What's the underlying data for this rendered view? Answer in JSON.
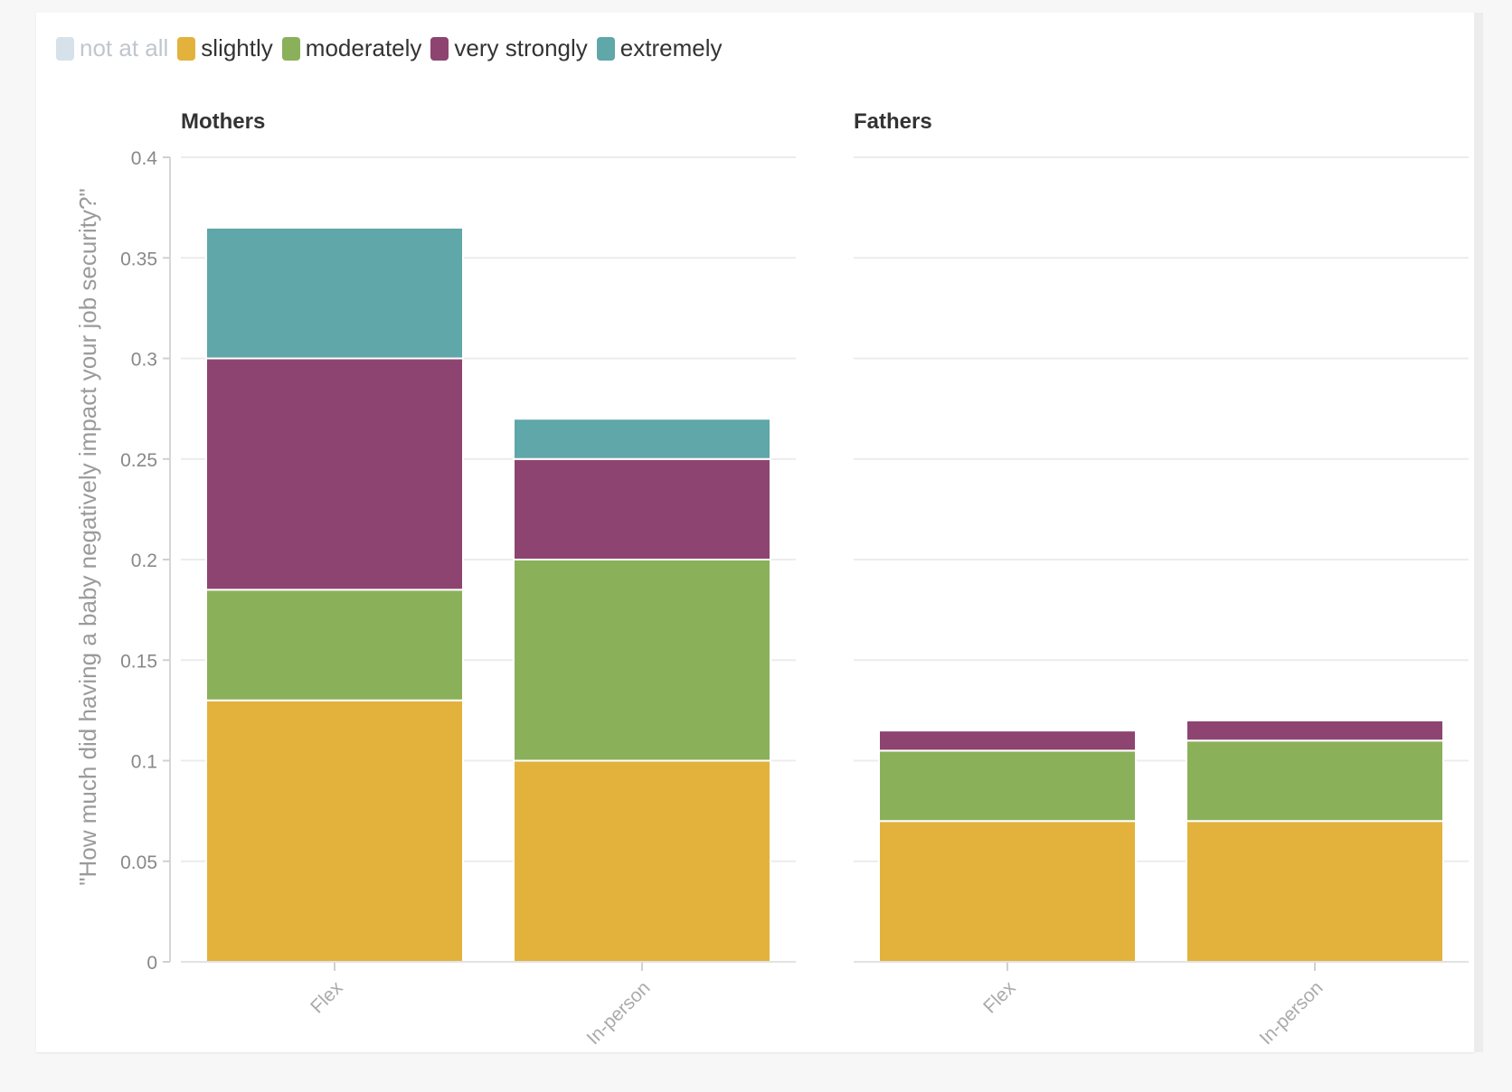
{
  "chart_data": {
    "type": "bar",
    "stacked": true,
    "ylabel": "\"How much did having a baby negatively impact your job security?\"",
    "ylim": [
      0,
      0.4
    ],
    "yticks": [
      "0",
      "0.05",
      "0.1",
      "0.15",
      "0.2",
      "0.25",
      "0.3",
      "0.35",
      "0.4"
    ],
    "legend": [
      {
        "name": "not at all",
        "color": "#d3dee8",
        "active": false
      },
      {
        "name": "slightly",
        "color": "#e3b23c",
        "active": true
      },
      {
        "name": "moderately",
        "color": "#8ab15a",
        "active": true
      },
      {
        "name": "very strongly",
        "color": "#8e4470",
        "active": true
      },
      {
        "name": "extremely",
        "color": "#5fa7a8",
        "active": true
      }
    ],
    "panels": [
      {
        "title": "Mothers",
        "categories": [
          "Flex",
          "In-person"
        ],
        "series": [
          {
            "name": "slightly",
            "values": [
              0.13,
              0.1
            ]
          },
          {
            "name": "moderately",
            "values": [
              0.055,
              0.1
            ]
          },
          {
            "name": "very strongly",
            "values": [
              0.115,
              0.05
            ]
          },
          {
            "name": "extremely",
            "values": [
              0.065,
              0.02
            ]
          }
        ]
      },
      {
        "title": "Fathers",
        "categories": [
          "Flex",
          "In-person"
        ],
        "series": [
          {
            "name": "slightly",
            "values": [
              0.07,
              0.07
            ]
          },
          {
            "name": "moderately",
            "values": [
              0.035,
              0.04
            ]
          },
          {
            "name": "very strongly",
            "values": [
              0.01,
              0.01
            ]
          },
          {
            "name": "extremely",
            "values": [
              0,
              0
            ]
          }
        ]
      }
    ]
  }
}
